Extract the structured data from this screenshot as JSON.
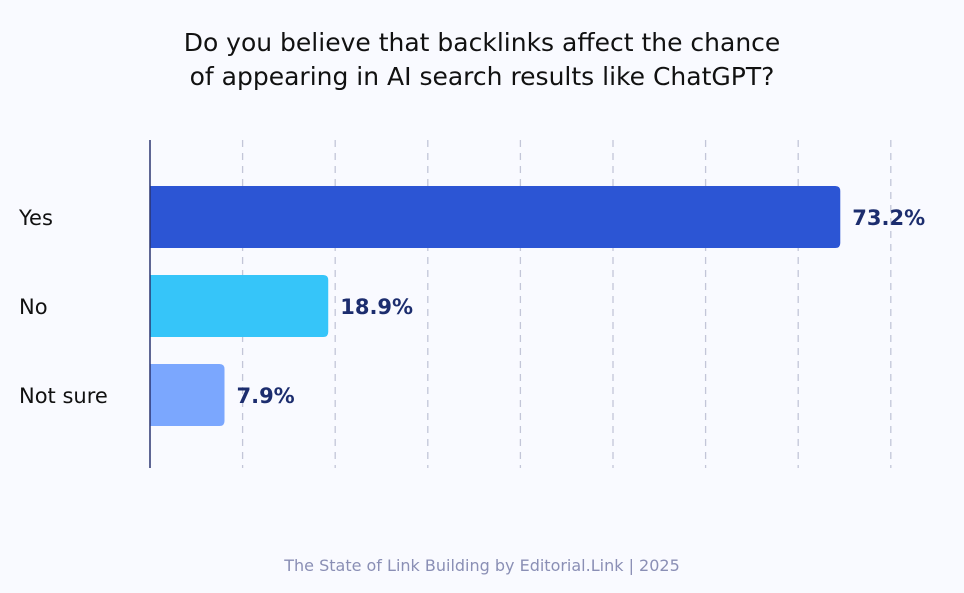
{
  "chart_data": {
    "type": "bar",
    "orientation": "horizontal",
    "title_lines": [
      "Do you believe that backlinks affect the chance",
      "of appearing in AI search results like ChatGPT?"
    ],
    "categories": [
      "Yes",
      "No",
      "Not sure"
    ],
    "values": [
      73.2,
      18.9,
      7.9
    ],
    "value_labels": [
      "73.2%",
      "18.9%",
      "7.9%"
    ],
    "colors": [
      "#2c55d4",
      "#36c5f9",
      "#7ba7fe"
    ],
    "label_color": "#1c2d6e",
    "xlim": [
      0,
      80
    ],
    "grid": true,
    "unit": "%"
  },
  "source": "The State of Link Building by Editorial.Link | 2025"
}
